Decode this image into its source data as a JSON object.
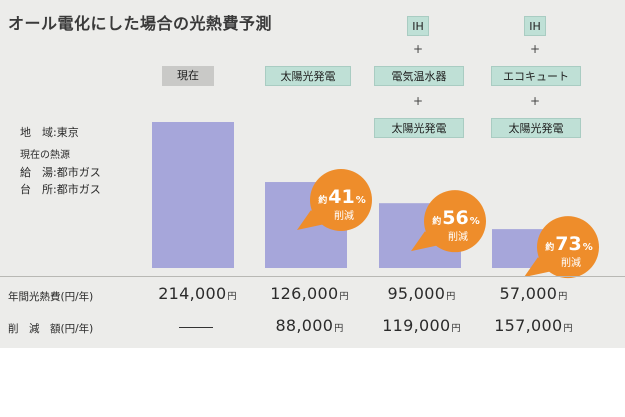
{
  "chart_data": {
    "type": "bar",
    "title": "オール電化にした場合の光熱費予測",
    "categories": [
      "現在",
      "太陽光発電",
      "電気温水器 + 太陽光発電",
      "エコキュート + 太陽光発電"
    ],
    "values": [
      214000,
      126000,
      95000,
      57000
    ],
    "reduction_percent": [
      null,
      41,
      56,
      73
    ],
    "savings": [
      null,
      88000,
      119000,
      157000
    ],
    "ylim": [
      0,
      214000
    ],
    "grid": false,
    "legend": "none",
    "colors": {
      "bar": "#a6a6da",
      "badge": "#ee8d2b",
      "header_current": "#c9c9c7",
      "header_plan": "#bfe0d6"
    }
  },
  "headers": {
    "current": "現在",
    "solar": "太陽光発電",
    "ih": "IH",
    "plus": "+",
    "water_heater": "電気温水器",
    "ecocute": "エコキュート",
    "solar2": "太陽光発電",
    "solar3": "太陽光発電"
  },
  "info": {
    "region": "地　域:東京",
    "heat_source_title": "現在の熱源",
    "supply": "給　湯:都市ガス",
    "kitchen": "台　所:都市ガス"
  },
  "badges": {
    "prefix": "約",
    "percent_sign": "%",
    "reduction": "削減",
    "values": [
      "41",
      "56",
      "73"
    ]
  },
  "table": {
    "annual_label": "年間光熱費(円/年)",
    "saving_label": "削　減　額(円/年)",
    "unit": "円",
    "annual": [
      "214,000",
      "126,000",
      "95,000",
      "57,000"
    ],
    "saving": [
      "—",
      "88,000",
      "119,000",
      "157,000"
    ]
  }
}
